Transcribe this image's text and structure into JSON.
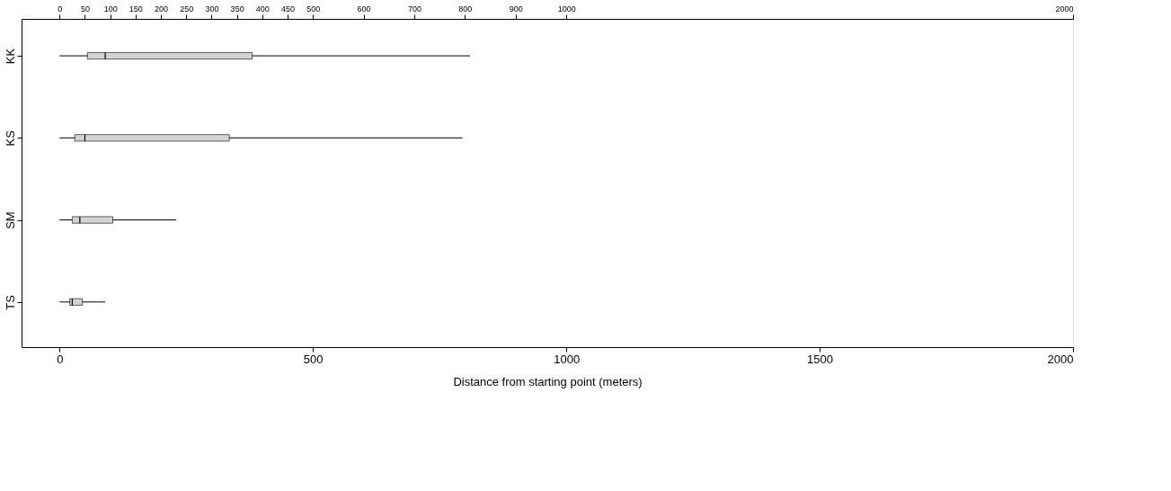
{
  "chart_data": {
    "type": "box",
    "orientation": "horizontal",
    "xlabel": "Distance from starting point (meters)",
    "categories": [
      "KK",
      "KS",
      "SM",
      "TS"
    ],
    "boxes": [
      {
        "low": 0,
        "q1": 55,
        "median": 90,
        "q3": 380,
        "high": 810
      },
      {
        "low": 0,
        "q1": 30,
        "median": 50,
        "q3": 335,
        "high": 795
      },
      {
        "low": 0,
        "q1": 25,
        "median": 40,
        "q3": 105,
        "high": 230
      },
      {
        "low": 0,
        "q1": 20,
        "median": 25,
        "q3": 45,
        "high": 90
      }
    ],
    "color": "#d3d3d3",
    "xlim": [
      -75,
      2000
    ],
    "xticks": [
      0,
      500,
      1000,
      1500,
      2000
    ],
    "x2lim": [
      -75,
      2000
    ],
    "x2ticks": [
      0,
      50,
      100,
      150,
      200,
      250,
      300,
      350,
      400,
      450,
      500,
      600,
      700,
      800,
      900,
      1000,
      2000
    ],
    "grid": false
  }
}
